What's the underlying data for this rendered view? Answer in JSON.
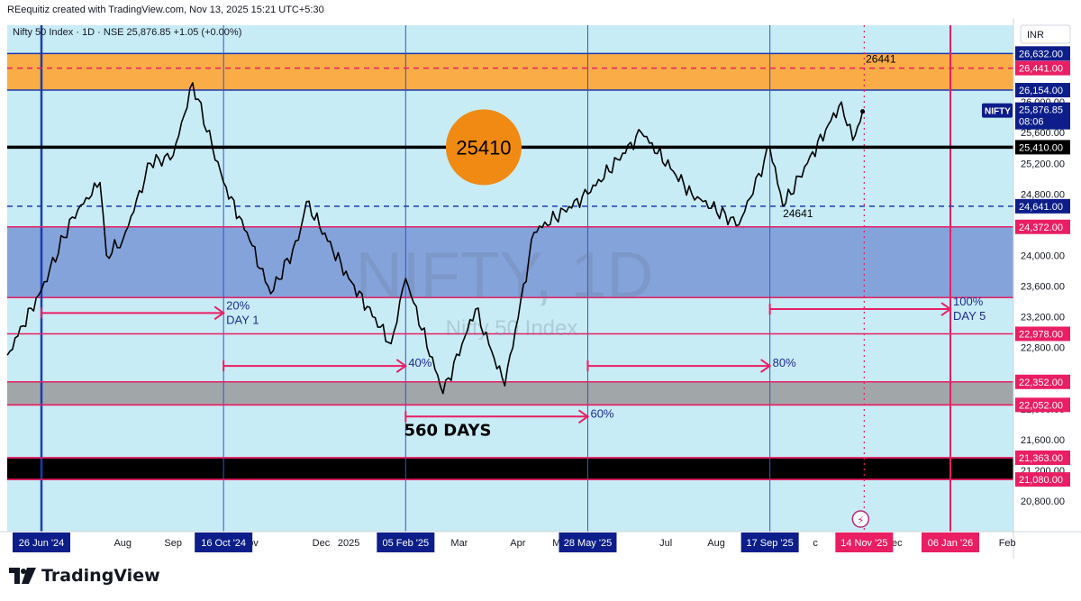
{
  "header": {
    "credit": "REequitiz created with TradingView.com, Nov 13, 2025 15:21 UTC+5:30"
  },
  "brand": {
    "logo_text": "TradingView",
    "logo_icon": "tradingview-logo-icon"
  },
  "chart_data": {
    "type": "line",
    "symbol_line": "Nifty 50 Index · 1D · NSE  25,876.85  +1.05 (+0.00%)",
    "currency": "INR",
    "watermark": [
      "NIFTY, 1D",
      "Nifty 50 Index"
    ],
    "ylim": [
      20400,
      27000
    ],
    "y_ticks": [
      "20,800.00",
      "21,200.00",
      "21,600.00",
      "22,000.00",
      "22,800.00",
      "23,200.00",
      "23,600.00",
      "24,000.00",
      "24,400.00",
      "24,800.00",
      "25,200.00",
      "25,600.00",
      "26,000.00"
    ],
    "x_month_labels": [
      {
        "date": "2024-08-15",
        "label": "Aug"
      },
      {
        "date": "2024-09-15",
        "label": "Sep"
      },
      {
        "date": "2024-11-01",
        "label": "Nov"
      },
      {
        "date": "2024-12-15",
        "label": "Dec"
      },
      {
        "date": "2025-01-01",
        "label": "2025"
      },
      {
        "date": "2025-03-10",
        "label": "Mar"
      },
      {
        "date": "2025-04-15",
        "label": "Apr"
      },
      {
        "date": "2025-05-12",
        "label": "May"
      },
      {
        "date": "2025-07-15",
        "label": "Jul"
      },
      {
        "date": "2025-08-15",
        "label": "Aug"
      },
      {
        "date": "2025-09-10",
        "label": "Se"
      },
      {
        "date": "2025-10-15",
        "label": "c"
      },
      {
        "date": "2025-12-02",
        "label": "Dec"
      },
      {
        "date": "2026-02-10",
        "label": "Feb"
      }
    ],
    "x_date_markers": [
      {
        "date": "2024-06-26",
        "label": "26 Jun '24",
        "color": "#0d1e8a"
      },
      {
        "date": "2024-10-16",
        "label": "16 Oct '24",
        "color": "#0d1e8a"
      },
      {
        "date": "2025-02-05",
        "label": "05 Feb '25",
        "color": "#0d1e8a"
      },
      {
        "date": "2025-05-28",
        "label": "28 May '25",
        "color": "#0d1e8a"
      },
      {
        "date": "2025-09-17",
        "label": "17 Sep '25",
        "color": "#0d1e8a"
      },
      {
        "date": "2025-11-14",
        "label": "14 Nov '25",
        "color": "#e91e63"
      },
      {
        "date": "2026-01-06",
        "label": "06 Jan '26",
        "color": "#e91e63"
      }
    ],
    "vertical_lines": [
      {
        "date": "2024-06-26",
        "color": "#1a3bb0",
        "width": 2.5
      },
      {
        "date": "2024-10-16",
        "color": "#3355cc",
        "width": 1
      },
      {
        "date": "2025-02-05",
        "color": "#3355cc",
        "width": 1
      },
      {
        "date": "2025-05-28",
        "color": "#3355cc",
        "width": 1
      },
      {
        "date": "2025-09-17",
        "color": "#3355cc",
        "width": 1
      },
      {
        "date": "2026-01-06",
        "color": "#e91e63",
        "width": 2
      }
    ],
    "cursor_line_date": "2025-11-14",
    "zones": [
      {
        "from": 26154,
        "to": 26632,
        "color": "#ffa533",
        "opacity": 0.9,
        "edge": "#1a3bb0"
      },
      {
        "from": 23450,
        "to": 24372,
        "color": "#4d68c2",
        "opacity": 0.55,
        "edge": "#e91e63"
      },
      {
        "from": 22052,
        "to": 22352,
        "color": "#9a9a9a",
        "opacity": 0.85,
        "edge": "#e91e63"
      },
      {
        "from": 21080,
        "to": 21363,
        "color": "#000000",
        "opacity": 1,
        "edge": "#e91e63"
      }
    ],
    "price_levels": [
      {
        "value": 26632,
        "label": "26,632.00",
        "bg": "#0d1e8a",
        "line": "none"
      },
      {
        "value": 26441,
        "label": "26,441.00",
        "bg": "#e91e63",
        "line": "dashed",
        "line_color": "#e91e63"
      },
      {
        "value": 26154,
        "label": "26,154.00",
        "bg": "#0d1e8a",
        "line": "none"
      },
      {
        "value": 25410,
        "label": "25,410.00",
        "bg": "#000000",
        "line": "solid",
        "line_color": "#000000"
      },
      {
        "value": 24641,
        "label": "24,641.00",
        "bg": "#0d1e8a",
        "line": "dashed",
        "line_color": "#1a3bb0"
      },
      {
        "value": 24372,
        "label": "24,372.00",
        "bg": "#e91e63",
        "line": "solid",
        "line_color": "#e91e63"
      },
      {
        "value": 22978,
        "label": "22,978.00",
        "bg": "#e91e63",
        "line": "solid",
        "line_color": "#e91e63"
      },
      {
        "value": 22352,
        "label": "22,352.00",
        "bg": "#e91e63",
        "line": "solid",
        "line_color": "#e91e63"
      },
      {
        "value": 22052,
        "label": "22,052.00",
        "bg": "#e91e63",
        "line": "solid",
        "line_color": "#e91e63"
      },
      {
        "value": 21363,
        "label": "21,363.00",
        "bg": "#e91e63",
        "line": "solid",
        "line_color": "#e91e63"
      },
      {
        "value": 21080,
        "label": "21,080.00",
        "bg": "#e91e63",
        "line": "solid",
        "line_color": "#e91e63"
      }
    ],
    "last_price": {
      "symbol": "NIFTY",
      "price": "25,876.85",
      "countdown": "08:06",
      "value": 25876.85
    },
    "annotations": [
      {
        "text": "26441",
        "date": "2025-11-15",
        "y": 26441
      },
      {
        "text": "24641",
        "date": "2025-09-25",
        "y": 24641
      }
    ],
    "circle_label": {
      "text": "25410",
      "date": "2025-03-25",
      "y": 25410,
      "color": "#f08a12"
    },
    "projection_arrows": [
      {
        "from": "2024-06-26",
        "to": "2024-10-16",
        "y": 23250,
        "label_lines": [
          "20%",
          "DAY 1"
        ]
      },
      {
        "from": "2024-10-16",
        "to": "2025-02-05",
        "y": 22560,
        "label_lines": [
          "40%"
        ]
      },
      {
        "from": "2025-02-05",
        "to": "2025-05-28",
        "y": 21900,
        "label_lines": [
          "60%"
        ]
      },
      {
        "from": "2025-05-28",
        "to": "2025-09-17",
        "y": 22560,
        "label_lines": [
          "80%"
        ]
      },
      {
        "from": "2025-09-17",
        "to": "2026-01-06",
        "y": 23300,
        "label_lines": [
          "100%",
          "DAY 5"
        ]
      }
    ],
    "days_label": {
      "text": "560 DAYS",
      "date": "2025-03-25",
      "y": 21720
    },
    "series": [
      {
        "x": [
          "2024-06-05",
          "2024-06-26",
          "2024-07-15",
          "2024-08-01",
          "2024-08-05",
          "2024-08-15",
          "2024-09-01",
          "2024-09-15",
          "2024-09-27",
          "2024-10-16",
          "2024-11-01",
          "2024-11-14",
          "2024-12-01",
          "2024-12-06",
          "2025-01-01",
          "2025-01-27",
          "2025-02-05",
          "2025-02-28",
          "2025-03-20",
          "2025-04-07",
          "2025-04-25",
          "2025-05-28",
          "2025-06-30",
          "2025-07-31",
          "2025-08-29",
          "2025-09-17",
          "2025-09-25",
          "2025-10-10",
          "2025-10-31",
          "2025-11-07",
          "2025-11-13"
        ],
        "y": [
          22700,
          23550,
          24500,
          24950,
          24000,
          24200,
          25200,
          25300,
          26250,
          24950,
          24200,
          23500,
          24200,
          24700,
          23700,
          22850,
          23700,
          22200,
          23300,
          22300,
          24300,
          24800,
          25600,
          24800,
          24400,
          25400,
          24641,
          25200,
          26000,
          25500,
          25876.85
        ]
      }
    ]
  }
}
